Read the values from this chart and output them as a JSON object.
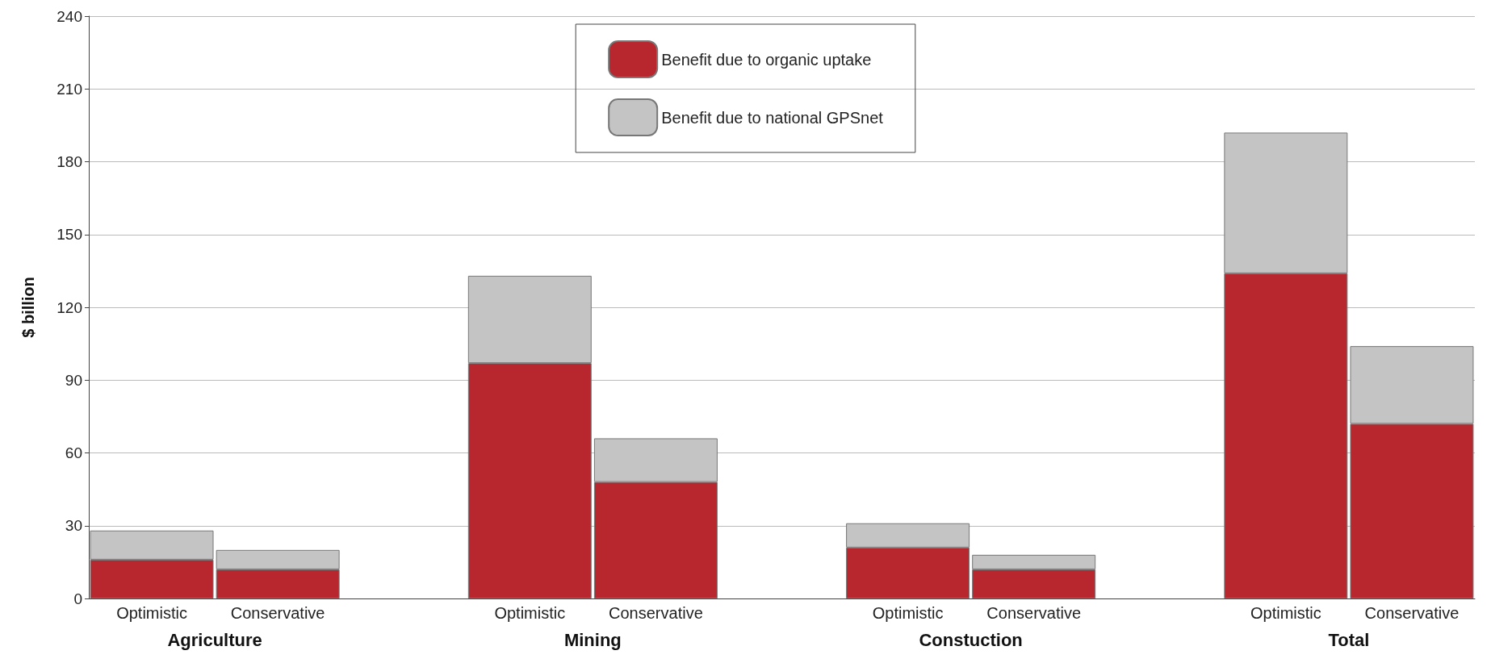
{
  "chart_data": {
    "type": "bar",
    "stacked": true,
    "ylabel": "$ billion",
    "categories": [
      "Optimistic",
      "Conservative",
      null,
      "Optimistic",
      "Conservative",
      null,
      "Optimistic",
      "Conservative",
      null,
      "Optimistic",
      "Conservative"
    ],
    "series": [
      {
        "name": "Benefit due to organic uptake",
        "color": "#b8262e",
        "values": [
          16,
          12,
          null,
          97,
          48,
          null,
          21,
          12,
          null,
          134,
          72
        ]
      },
      {
        "name": "Benefit due to national GPSnet",
        "color": "#c4c4c4",
        "values": [
          12,
          8,
          null,
          36,
          18,
          null,
          10,
          6,
          null,
          58,
          32
        ]
      }
    ],
    "annotations": [
      "Agriculture",
      "Mining",
      "Constuction",
      "Total"
    ],
    "ylim": [
      0,
      240
    ],
    "yticks": [
      0,
      30,
      60,
      90,
      120,
      150,
      180,
      210,
      240
    ],
    "grid": "y",
    "legend": "top"
  }
}
